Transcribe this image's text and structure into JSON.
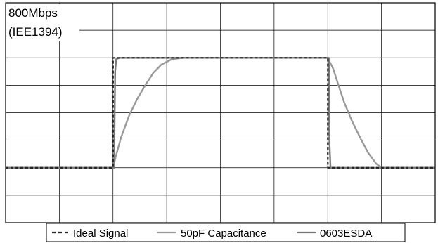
{
  "chart_data": {
    "type": "line",
    "title_lines": [
      "800Mbps",
      "(IEE1394)"
    ],
    "xlabel": "",
    "ylabel": "",
    "grid": true,
    "xlim": [
      0,
      8
    ],
    "ylim": [
      0,
      8
    ],
    "legend_position": "bottom",
    "series": [
      {
        "name": "Ideal Signal",
        "style": "dashed",
        "color": "#222222",
        "points": [
          [
            0,
            2
          ],
          [
            2.0,
            2
          ],
          [
            2.0,
            6
          ],
          [
            6.0,
            6
          ],
          [
            6.0,
            2
          ],
          [
            8,
            2
          ]
        ]
      },
      {
        "name": "50pF Capacitance",
        "style": "solid",
        "color": "#999999",
        "points": [
          [
            0,
            2
          ],
          [
            2.0,
            2
          ],
          [
            2.05,
            2.4
          ],
          [
            2.15,
            3.1
          ],
          [
            2.3,
            3.9
          ],
          [
            2.45,
            4.5
          ],
          [
            2.6,
            5.0
          ],
          [
            2.75,
            5.45
          ],
          [
            2.9,
            5.75
          ],
          [
            3.1,
            5.95
          ],
          [
            3.3,
            6
          ],
          [
            6.0,
            6
          ],
          [
            6.1,
            5.6
          ],
          [
            6.2,
            5.0
          ],
          [
            6.3,
            4.4
          ],
          [
            6.45,
            3.7
          ],
          [
            6.6,
            3.1
          ],
          [
            6.75,
            2.55
          ],
          [
            6.9,
            2.15
          ],
          [
            7.0,
            2.0
          ],
          [
            8,
            2
          ]
        ]
      },
      {
        "name": "0603ESDA",
        "style": "solid",
        "color": "#7a7a7a",
        "points": [
          [
            0,
            2
          ],
          [
            2.02,
            2
          ],
          [
            2.04,
            5.5
          ],
          [
            2.06,
            5.95
          ],
          [
            2.12,
            6
          ],
          [
            6.02,
            6
          ],
          [
            6.02,
            5.9
          ],
          [
            6.03,
            3.0
          ],
          [
            6.05,
            2.0
          ],
          [
            8,
            2
          ]
        ]
      }
    ]
  }
}
